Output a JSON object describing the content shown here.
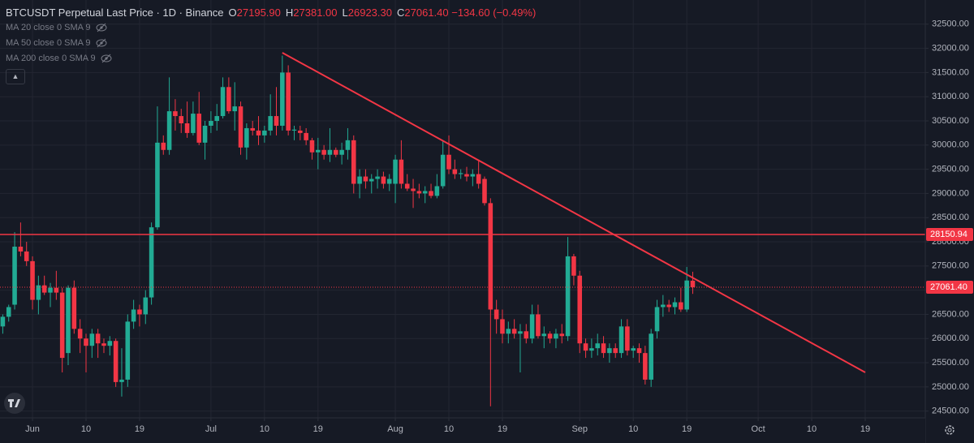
{
  "header": {
    "title": "BTCUSDT Perpetual Last Price · 1D · Binance",
    "ohlc": [
      {
        "label": "O",
        "value": "27195.90"
      },
      {
        "label": "H",
        "value": "27381.00"
      },
      {
        "label": "L",
        "value": "26923.30"
      },
      {
        "label": "C",
        "value": "27061.40"
      }
    ],
    "change": "−134.60 (−0.49%)",
    "indicators": [
      "MA 20 close 0 SMA 9",
      "MA 50 close 0 SMA 9",
      "MA 200 close 0 SMA 9"
    ]
  },
  "chart_data": {
    "type": "candlestick",
    "up_color": "#22ab94",
    "down_color": "#f23645",
    "grid": true,
    "ylim": [
      24360,
      33000
    ],
    "yticks": [
      {
        "value": 24500,
        "label": "24500.00"
      },
      {
        "value": 25000,
        "label": "25000.00"
      },
      {
        "value": 25500,
        "label": "25500.00"
      },
      {
        "value": 26000,
        "label": "26000.00"
      },
      {
        "value": 26500,
        "label": "26500.00"
      },
      {
        "value": 27000,
        "label": "27000.00"
      },
      {
        "value": 27500,
        "label": "27500.00"
      },
      {
        "value": 28000,
        "label": "28000.00"
      },
      {
        "value": 28500,
        "label": "28500.00"
      },
      {
        "value": 29000,
        "label": "29000.00"
      },
      {
        "value": 29500,
        "label": "29500.00"
      },
      {
        "value": 30000,
        "label": "30000.00"
      },
      {
        "value": 30500,
        "label": "30500.00"
      },
      {
        "value": 31000,
        "label": "31000.00"
      },
      {
        "value": 31500,
        "label": "31500.00"
      },
      {
        "value": 32000,
        "label": "32000.00"
      },
      {
        "value": 32500,
        "label": "32500.00"
      }
    ],
    "categories": [
      null,
      null,
      null,
      null,
      null,
      "Jun",
      null,
      null,
      null,
      null,
      null,
      null,
      null,
      null,
      "10",
      null,
      null,
      null,
      null,
      null,
      null,
      null,
      null,
      "19",
      null,
      null,
      null,
      null,
      null,
      null,
      null,
      null,
      null,
      null,
      null,
      "Jul",
      null,
      null,
      null,
      null,
      null,
      null,
      null,
      null,
      "10",
      null,
      null,
      null,
      null,
      null,
      null,
      null,
      null,
      "19",
      null,
      null,
      null,
      null,
      null,
      null,
      null,
      null,
      null,
      null,
      null,
      null,
      "Aug",
      null,
      null,
      null,
      null,
      null,
      null,
      null,
      null,
      "10",
      null,
      null,
      null,
      null,
      null,
      null,
      null,
      null,
      "19",
      null,
      null,
      null,
      null,
      null,
      null,
      null,
      null,
      null,
      null,
      null,
      null,
      "Sep",
      null,
      null,
      null,
      null,
      null,
      null,
      null,
      null,
      "10",
      null,
      null,
      null,
      null,
      null,
      null,
      null,
      null,
      "19",
      null,
      null,
      null,
      null,
      null,
      null,
      null,
      null,
      null,
      null,
      null,
      "Oct",
      null,
      null,
      null,
      null,
      null,
      null,
      null,
      null,
      "10",
      null,
      null,
      null,
      null,
      null,
      null,
      null,
      null,
      "19"
    ],
    "candles": [
      [
        26250,
        26500,
        26100,
        26450
      ],
      [
        26450,
        26700,
        26350,
        26650
      ],
      [
        26700,
        28200,
        26600,
        27900
      ],
      [
        27900,
        28400,
        27700,
        27800
      ],
      [
        27800,
        28000,
        27500,
        27600
      ],
      [
        27600,
        27700,
        26600,
        26800
      ],
      [
        26800,
        27300,
        26500,
        27100
      ],
      [
        27100,
        27300,
        26900,
        26950
      ],
      [
        26950,
        27150,
        26650,
        27050
      ],
      [
        27050,
        27400,
        26800,
        26950
      ],
      [
        26950,
        27050,
        25300,
        25600
      ],
      [
        25700,
        27100,
        25450,
        27050
      ],
      [
        27050,
        27200,
        26100,
        26200
      ],
      [
        26200,
        26400,
        25700,
        26000
      ],
      [
        26000,
        26100,
        25300,
        25850
      ],
      [
        25850,
        26200,
        25600,
        26100
      ],
      [
        26100,
        26200,
        25600,
        25900
      ],
      [
        25900,
        26000,
        25700,
        25850
      ],
      [
        25850,
        26050,
        25650,
        25950
      ],
      [
        25950,
        26000,
        25000,
        25100
      ],
      [
        25100,
        25800,
        24800,
        25150
      ],
      [
        25150,
        26500,
        25000,
        26350
      ],
      [
        26350,
        26800,
        26200,
        26600
      ],
      [
        26600,
        26700,
        26250,
        26500
      ],
      [
        26500,
        27000,
        26300,
        26850
      ],
      [
        26850,
        28400,
        26700,
        28300
      ],
      [
        28300,
        30800,
        28250,
        30050
      ],
      [
        30050,
        30200,
        29800,
        29900
      ],
      [
        29900,
        31400,
        29800,
        30700
      ],
      [
        30700,
        30950,
        30300,
        30600
      ],
      [
        30600,
        30750,
        30250,
        30450
      ],
      [
        30450,
        30900,
        30150,
        30250
      ],
      [
        30250,
        30900,
        30200,
        30650
      ],
      [
        30650,
        31100,
        30000,
        30050
      ],
      [
        30050,
        30500,
        29700,
        30400
      ],
      [
        30400,
        30700,
        30250,
        30500
      ],
      [
        30500,
        30850,
        30300,
        30600
      ],
      [
        30600,
        31400,
        30550,
        31200
      ],
      [
        31200,
        31400,
        30650,
        30700
      ],
      [
        30700,
        31300,
        30300,
        30800
      ],
      [
        30800,
        30900,
        29800,
        29950
      ],
      [
        29950,
        30450,
        29700,
        30350
      ],
      [
        30350,
        30500,
        30200,
        30300
      ],
      [
        30300,
        30600,
        30000,
        30200
      ],
      [
        30200,
        30400,
        30050,
        30300
      ],
      [
        30300,
        31050,
        30200,
        30600
      ],
      [
        30600,
        31200,
        30200,
        30400
      ],
      [
        30400,
        31850,
        30300,
        31500
      ],
      [
        31500,
        31650,
        30200,
        30300
      ],
      [
        30300,
        30400,
        30100,
        30320
      ],
      [
        30300,
        30400,
        30100,
        30250
      ],
      [
        30250,
        30350,
        30000,
        30100
      ],
      [
        30100,
        30150,
        29700,
        29850
      ],
      [
        29850,
        30150,
        29500,
        29900
      ],
      [
        29900,
        30000,
        29700,
        29800
      ],
      [
        29800,
        30350,
        29650,
        29900
      ],
      [
        29900,
        29950,
        29750,
        29800
      ],
      [
        29800,
        30050,
        29600,
        29900
      ],
      [
        29900,
        30350,
        29700,
        30100
      ],
      [
        30100,
        30200,
        29000,
        29200
      ],
      [
        29200,
        29500,
        28900,
        29350
      ],
      [
        29350,
        29500,
        29100,
        29250
      ],
      [
        29250,
        29400,
        29000,
        29300
      ],
      [
        29300,
        29500,
        29100,
        29350
      ],
      [
        29350,
        29450,
        29100,
        29200
      ],
      [
        29200,
        29400,
        29050,
        29300
      ],
      [
        29200,
        29800,
        28800,
        29700
      ],
      [
        29700,
        30100,
        29100,
        29200
      ],
      [
        29200,
        29400,
        29050,
        29100
      ],
      [
        29100,
        29300,
        28700,
        29050
      ],
      [
        29050,
        29200,
        28900,
        29000
      ],
      [
        29000,
        29150,
        28800,
        29050
      ],
      [
        29050,
        29200,
        28900,
        28950
      ],
      [
        28950,
        29400,
        28900,
        29150
      ],
      [
        29150,
        30100,
        29100,
        29800
      ],
      [
        29800,
        30200,
        29400,
        29500
      ],
      [
        29500,
        29700,
        29300,
        29400
      ],
      [
        29400,
        29500,
        29300,
        29420
      ],
      [
        29400,
        29550,
        29250,
        29350
      ],
      [
        29350,
        29500,
        29150,
        29400
      ],
      [
        29400,
        29700,
        29100,
        29200
      ],
      [
        29300,
        29350,
        28750,
        28800
      ],
      [
        28800,
        28900,
        24600,
        26600
      ],
      [
        26600,
        26800,
        26100,
        26400
      ],
      [
        26400,
        26600,
        25900,
        26100
      ],
      [
        26100,
        26350,
        25900,
        26200
      ],
      [
        26200,
        26400,
        26000,
        26100
      ],
      [
        26100,
        26300,
        25300,
        26150
      ],
      [
        26150,
        26300,
        25900,
        26000
      ],
      [
        26000,
        26700,
        25900,
        26500
      ],
      [
        26500,
        26700,
        26000,
        26050
      ],
      [
        26050,
        26250,
        25800,
        26100
      ],
      [
        26100,
        26150,
        25900,
        26000
      ],
      [
        26000,
        26200,
        25800,
        26100
      ],
      [
        26100,
        26300,
        25900,
        26050
      ],
      [
        26050,
        28100,
        25950,
        27700
      ],
      [
        27700,
        27750,
        27100,
        27300
      ],
      [
        27300,
        27400,
        25700,
        25900
      ],
      [
        25900,
        26000,
        25600,
        25750
      ],
      [
        25750,
        26000,
        25600,
        25800
      ],
      [
        25800,
        26100,
        25650,
        25900
      ],
      [
        25900,
        26050,
        25600,
        25700
      ],
      [
        25700,
        25900,
        25500,
        25800
      ],
      [
        25800,
        25900,
        25600,
        25700
      ],
      [
        25700,
        26400,
        25600,
        26250
      ],
      [
        26250,
        26400,
        25650,
        25750
      ],
      [
        25750,
        25850,
        25600,
        25800
      ],
      [
        25800,
        25900,
        25500,
        25700
      ],
      [
        25700,
        25850,
        25050,
        25150
      ],
      [
        25150,
        26200,
        25000,
        26100
      ],
      [
        26150,
        26800,
        26000,
        26650
      ],
      [
        26650,
        26900,
        26450,
        26700
      ],
      [
        26700,
        26800,
        26550,
        26650
      ],
      [
        26650,
        26850,
        26500,
        26750
      ],
      [
        26750,
        27050,
        26550,
        26600
      ],
      [
        26600,
        27480,
        26550,
        27200
      ],
      [
        27195.9,
        27381,
        26923.3,
        27061.4
      ],
      null,
      null,
      null,
      null,
      null,
      null,
      null,
      null,
      null,
      null,
      null,
      null,
      null,
      null,
      null,
      null,
      null,
      null,
      null,
      null,
      null,
      null,
      null,
      null,
      null,
      null,
      null,
      null,
      null
    ],
    "hline": {
      "value": 28150.94,
      "label": "28150.94",
      "color": "#f23645"
    },
    "last_price": {
      "value": 27061.4,
      "label": "27061.40",
      "color": "#f23645"
    },
    "trendline": {
      "x": [
        47,
        145
      ],
      "y": [
        31910,
        25300
      ],
      "color": "#f23645"
    }
  }
}
